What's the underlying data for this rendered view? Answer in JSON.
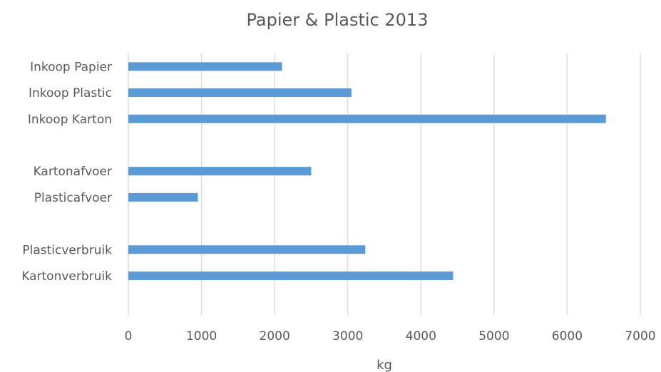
{
  "chart_data": {
    "type": "bar",
    "orientation": "horizontal",
    "title": "Papier & Plastic 2013",
    "xlabel": "kg",
    "ylabel": "",
    "xlim": [
      0,
      7000
    ],
    "x_ticks": [
      "0",
      "1000",
      "2000",
      "3000",
      "4000",
      "5000",
      "6000",
      "7000"
    ],
    "grid": true,
    "legend": "none",
    "color": "#5b9bd5",
    "categories": [
      "Inkoop Papier",
      "Inkoop Plastic",
      "Inkoop Karton",
      "",
      "Kartonafvoer",
      "Plasticafvoer",
      "",
      "Plasticverbruik",
      "Kartonverbruik",
      ""
    ],
    "values": [
      2100,
      3050,
      6530,
      null,
      2500,
      950,
      null,
      3240,
      4440,
      null
    ]
  }
}
